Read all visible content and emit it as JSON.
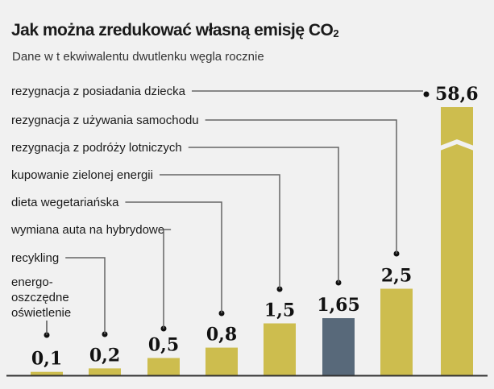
{
  "chart_data": {
    "type": "bar",
    "title": "Jak można zredukować własną emisję CO",
    "title_subscript": "2",
    "subtitle": "Dane w t ekwiwalentu dwutlenku węgla rocznie",
    "categories": [
      [
        "energo-",
        "oszczędne",
        "oświetlenie"
      ],
      [
        "recykling"
      ],
      [
        "wymiana auta na hybrydowe"
      ],
      [
        "dieta wegetariańska"
      ],
      [
        "kupowanie zielonej energii"
      ],
      [
        "rezygnacja z podróży lotniczych"
      ],
      [
        "rezygnacja z używania samochodu"
      ],
      [
        "rezygnacja z posiadania dziecka"
      ]
    ],
    "values": [
      0.1,
      0.2,
      0.5,
      0.8,
      1.5,
      1.65,
      2.5,
      58.6
    ],
    "value_labels": [
      "0,1",
      "0,2",
      "0,5",
      "0,8",
      "1,5",
      "1,65",
      "2,5",
      "58,6"
    ],
    "highlight_index": 5,
    "broken_axis_index": 7,
    "colors": {
      "bar": "#cdbd4e",
      "highlight": "#58697a",
      "background": "#f1f1f1"
    }
  }
}
